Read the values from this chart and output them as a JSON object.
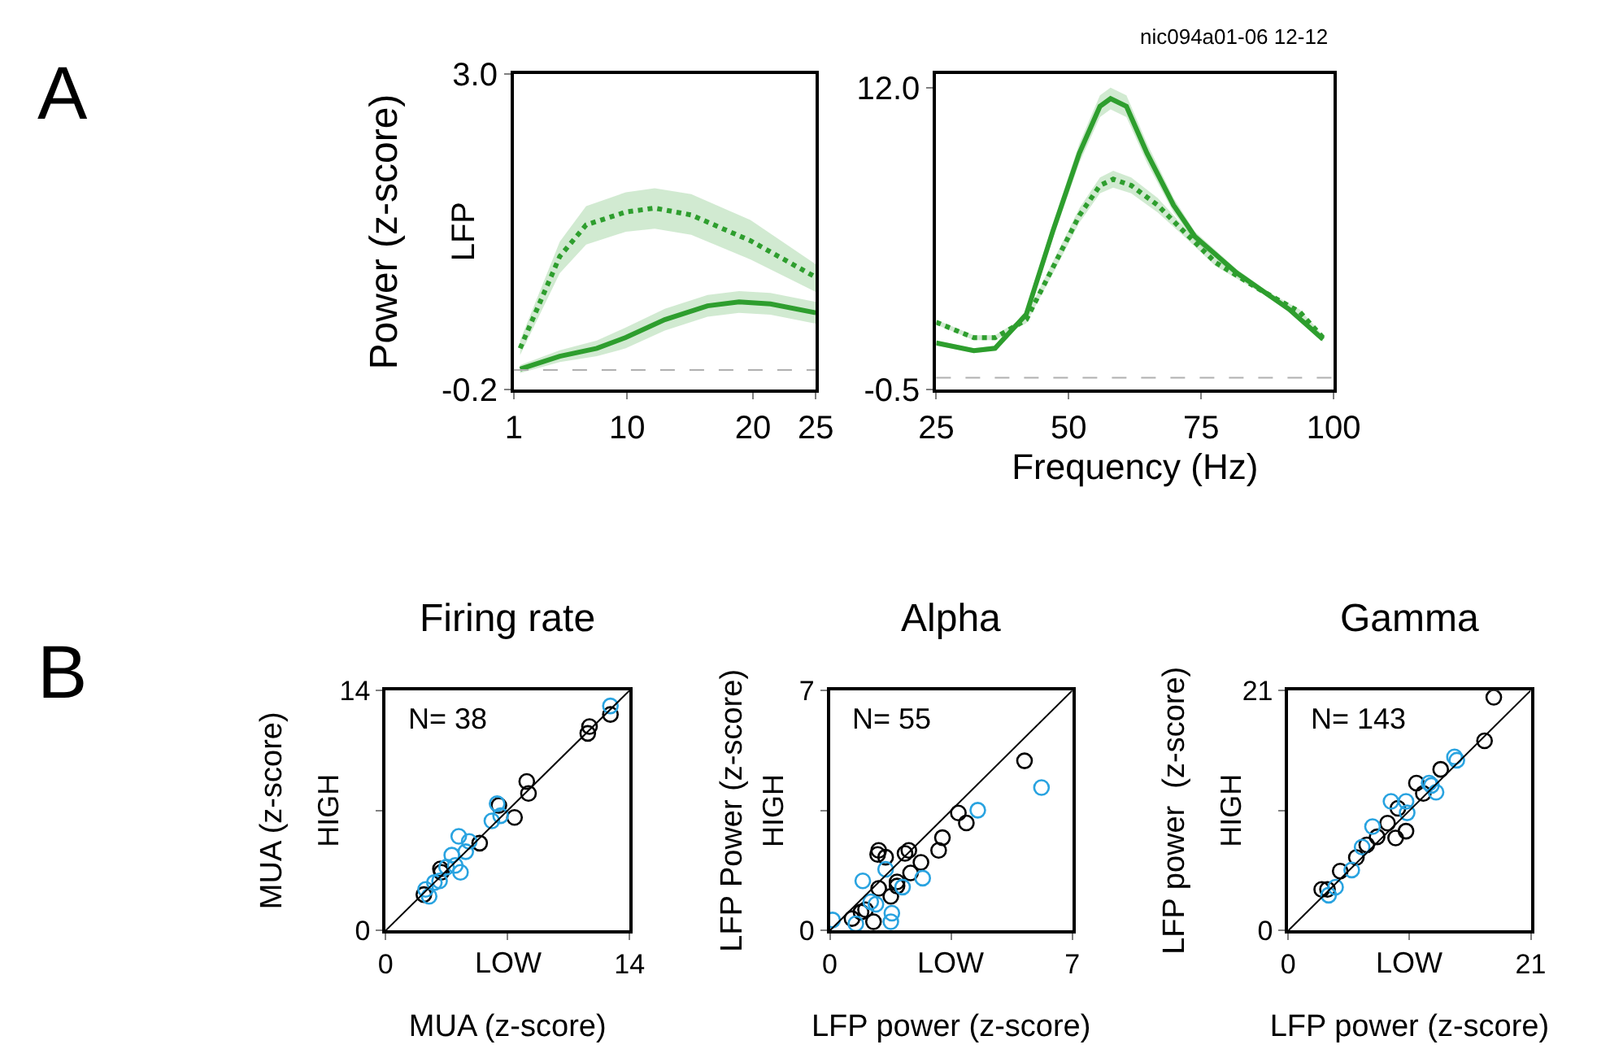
{
  "chart_data": [
    {
      "type": "line",
      "ylabel": "Power (z-score)",
      "annotations": [
        "A",
        "LFP"
      ],
      "xlim": [
        1,
        25
      ],
      "xticks": [
        1,
        10,
        20,
        25
      ],
      "ylim": [
        -0.2,
        3.0
      ],
      "yticks": [
        {
          "value": -0.2,
          "label": "-0.2"
        },
        {
          "value": 3.0,
          "label": "3.0"
        }
      ],
      "ref_lines": [
        {
          "axis": "y",
          "value": 0,
          "color": "#b0b0b0",
          "line_style": "dashed"
        }
      ],
      "series": [
        {
          "color": "#2e9e2e",
          "line_style": "dotted",
          "x": [
            1.5,
            4.65,
            6.75,
            9.9,
            12.2,
            15.1,
            19.8,
            25
          ],
          "values": [
            0.22,
            1.15,
            1.47,
            1.6,
            1.64,
            1.57,
            1.31,
            0.94
          ],
          "upper": [
            0.3,
            1.3,
            1.66,
            1.8,
            1.84,
            1.78,
            1.52,
            1.07
          ],
          "lower": [
            0.15,
            0.98,
            1.27,
            1.4,
            1.43,
            1.37,
            1.12,
            0.79
          ]
        },
        {
          "color": "#2e9e2e",
          "line_style": "solid",
          "x": [
            1.5,
            4.65,
            7.6,
            9.9,
            13,
            16.4,
            18.9,
            21.4,
            25
          ],
          "values": [
            0.01,
            0.14,
            0.22,
            0.33,
            0.51,
            0.65,
            0.69,
            0.67,
            0.58
          ],
          "upper": [
            0.05,
            0.2,
            0.3,
            0.43,
            0.62,
            0.76,
            0.8,
            0.78,
            0.69
          ],
          "lower": [
            -0.03,
            0.08,
            0.14,
            0.22,
            0.4,
            0.54,
            0.58,
            0.56,
            0.47
          ]
        }
      ]
    },
    {
      "type": "line",
      "xlabel": "Frequency (Hz)",
      "annotations": [
        "nic094a01-06 12-12"
      ],
      "xlim": [
        25,
        100
      ],
      "xticks": [
        25,
        50,
        75,
        100
      ],
      "ylim": [
        -0.5,
        12.6
      ],
      "yticks": [
        {
          "value": -0.5,
          "label": "-0.5"
        },
        {
          "value": 12,
          "label": "12.0"
        }
      ],
      "ref_lines": [
        {
          "axis": "y",
          "value": 0,
          "color": "#b0b0b0",
          "line_style": "dashed"
        }
      ],
      "series": [
        {
          "color": "#2e9e2e",
          "line_style": "solid",
          "x": [
            25,
            32.1,
            36.1,
            42,
            47,
            52,
            55.9,
            57.9,
            60.9,
            64.8,
            69.8,
            73.8,
            81.7,
            91.6,
            98
          ],
          "values": [
            1.44,
            1.12,
            1.22,
            2.63,
            6.07,
            9.3,
            11.25,
            11.57,
            11.25,
            9.3,
            7.15,
            5.86,
            4.35,
            2.84,
            1.59
          ],
          "upper": [
            1.54,
            1.22,
            1.32,
            2.78,
            6.37,
            9.7,
            11.7,
            12.02,
            11.7,
            9.7,
            7.45,
            6.06,
            4.5,
            2.94,
            1.69
          ],
          "lower": [
            1.34,
            1.02,
            1.12,
            2.48,
            5.77,
            8.9,
            10.8,
            11.12,
            10.8,
            8.9,
            6.85,
            5.66,
            4.2,
            2.74,
            1.49
          ]
        },
        {
          "color": "#2e9e2e",
          "line_style": "dotted",
          "x": [
            25,
            32.1,
            36.1,
            42,
            47,
            52,
            55.9,
            58.4,
            61.8,
            66.8,
            71.7,
            77.7,
            85.7,
            93.6,
            98
          ],
          "values": [
            2.3,
            1.66,
            1.66,
            2.41,
            4.56,
            6.72,
            7.97,
            8.23,
            7.97,
            7.15,
            6.07,
            4.78,
            3.7,
            2.73,
            1.66
          ],
          "upper": [
            2.4,
            1.76,
            1.76,
            2.56,
            4.81,
            7.02,
            8.3,
            8.58,
            8.3,
            7.45,
            6.27,
            4.93,
            3.8,
            2.83,
            1.76
          ],
          "lower": [
            2.2,
            1.56,
            1.56,
            2.26,
            4.31,
            6.42,
            7.64,
            7.88,
            7.64,
            6.85,
            5.87,
            4.63,
            3.6,
            2.63,
            1.56
          ]
        }
      ]
    },
    {
      "type": "scatter",
      "title": "Firing rate",
      "xlabel": "MUA (z-score)",
      "ylabel": "MUA (z-score)",
      "annotations": [
        "N= 38",
        "HIGH",
        "LOW",
        "B"
      ],
      "xlim": [
        0,
        14
      ],
      "xticks": [
        0,
        {
          "value": 7,
          "label": null
        },
        14
      ],
      "ylim": [
        0,
        14
      ],
      "yticks": [
        0,
        {
          "value": 7,
          "label": null
        },
        14
      ],
      "marker": "circle",
      "series": [
        {
          "color": "#000000",
          "x": [
            2.2,
            3.15,
            3.2,
            5.4,
            6.5,
            7.4,
            8.1,
            8.2,
            11.7,
            11.6,
            12.9
          ],
          "values": [
            2.1,
            3.6,
            3.4,
            5.1,
            7.3,
            6.6,
            8.7,
            8.0,
            11.9,
            11.5,
            12.6
          ]
        },
        {
          "color": "#29a3e0",
          "x": [
            2.3,
            2.5,
            2.8,
            3.5,
            3.8,
            4.2,
            4.3,
            4.6,
            4.8,
            6.1,
            6.4,
            6.6,
            12.9,
            4.0,
            3.1
          ],
          "values": [
            2.4,
            2.0,
            2.8,
            3.7,
            4.4,
            5.5,
            3.4,
            4.6,
            5.2,
            6.4,
            7.4,
            6.7,
            13.1,
            3.8,
            2.9
          ]
        },
        {
          "type": "line",
          "marker": "none",
          "color": "#000000",
          "x": [
            0,
            14
          ],
          "values": [
            0,
            14
          ]
        }
      ]
    },
    {
      "type": "scatter",
      "title": "Alpha",
      "xlabel": "LFP power (z-score)",
      "ylabel": "LFP Power (z-score)",
      "annotations": [
        "N= 55",
        "HIGH",
        "LOW"
      ],
      "xlim": [
        0,
        7
      ],
      "xticks": [
        0,
        {
          "value": 3.5,
          "label": null
        },
        7
      ],
      "ylim": [
        0,
        7
      ],
      "yticks": [
        0,
        {
          "value": 3.5,
          "label": null
        },
        7
      ],
      "marker": "circle",
      "series": [
        {
          "color": "#000000",
          "x": [
            5.62,
            3.71,
            3.94,
            3.25,
            3.14,
            2.63,
            2.33,
            2.28,
            2.17,
            1.41,
            1.38,
            1.61,
            1.94,
            1.41,
            1.76,
            1.03,
            0.64,
            1.26,
            1.94,
            0.9
          ],
          "values": [
            4.95,
            3.43,
            3.14,
            2.71,
            2.34,
            1.99,
            1.68,
            2.34,
            2.25,
            2.34,
            2.22,
            2.14,
            1.42,
            1.23,
            1.0,
            0.61,
            0.35,
            0.26,
            1.3,
            0.54
          ]
        },
        {
          "color": "#29a3e0",
          "x": [
            6.11,
            4.27,
            2.68,
            0.95,
            1.61,
            2.1,
            1.18,
            1.76,
            1.79,
            0.08,
            0.75,
            1.33
          ],
          "values": [
            4.17,
            3.51,
            1.53,
            1.45,
            1.79,
            1.27,
            0.84,
            0.26,
            0.51,
            0.31,
            0.2,
            0.77
          ]
        },
        {
          "type": "line",
          "marker": "none",
          "color": "#000000",
          "x": [
            0,
            7
          ],
          "values": [
            0,
            7
          ]
        }
      ]
    },
    {
      "type": "scatter",
      "title": "Gamma",
      "xlabel": "LFP power (z-score)",
      "ylabel": "LFP power  (z-score)",
      "annotations": [
        "N= 143",
        "HIGH",
        "LOW"
      ],
      "xlim": [
        0,
        21
      ],
      "xticks": [
        0,
        {
          "value": 10.5,
          "label": null
        },
        21
      ],
      "ylim": [
        0,
        21
      ],
      "yticks": [
        0,
        {
          "value": 10.5,
          "label": null
        },
        21
      ],
      "marker": "circle",
      "series": [
        {
          "color": "#000000",
          "x": [
            17.8,
            17.0,
            13.2,
            11.1,
            11.7,
            9.5,
            8.6,
            10.2,
            9.3,
            7.7,
            6.8,
            5.9,
            4.5,
            2.9,
            3.4
          ],
          "values": [
            20.4,
            16.6,
            14.1,
            12.9,
            12.0,
            10.7,
            9.4,
            8.7,
            8.1,
            8.2,
            7.5,
            6.4,
            5.2,
            3.6,
            3.6
          ]
        },
        {
          "color": "#29a3e0",
          "x": [
            14.4,
            14.6,
            12.2,
            12.8,
            10.2,
            8.9,
            7.3,
            6.4,
            5.5,
            4.1,
            3.5,
            10.3,
            12.4
          ],
          "values": [
            15.2,
            14.9,
            12.9,
            12.1,
            11.3,
            11.3,
            9.1,
            7.3,
            5.3,
            3.8,
            3.1,
            10.3,
            12.7
          ]
        },
        {
          "type": "line",
          "marker": "none",
          "color": "#000000",
          "x": [
            0,
            21
          ],
          "values": [
            0,
            21
          ]
        }
      ]
    }
  ]
}
